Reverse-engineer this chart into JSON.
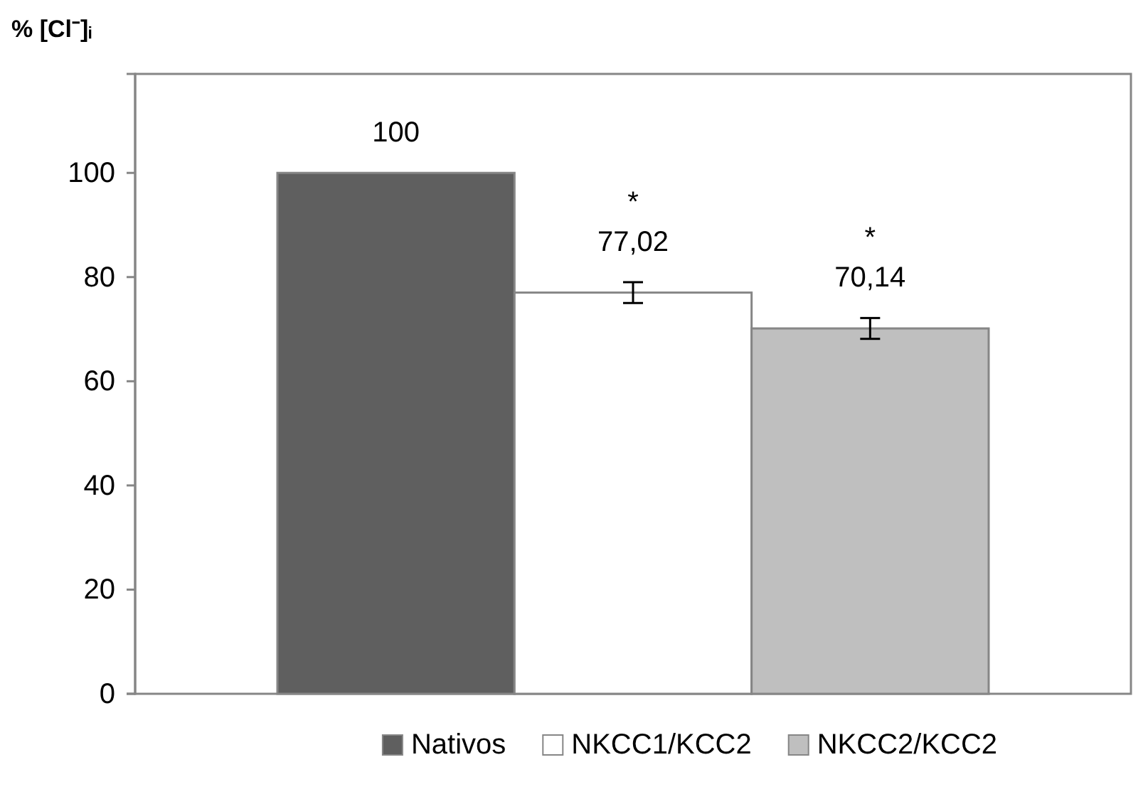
{
  "chart_data": {
    "type": "bar",
    "ylabel": "% [Cl⁻]ᵢ",
    "categories": [
      null
    ],
    "series": [
      {
        "name": "Nativos",
        "color": "#5f5f5f",
        "values": [
          100
        ],
        "errors": [
          null
        ],
        "value_labels": [
          "100"
        ]
      },
      {
        "name": "NKCC1/KCC2",
        "color": "#ffffff",
        "values": [
          77.02
        ],
        "errors": [
          2
        ],
        "value_labels": [
          "77,02"
        ]
      },
      {
        "name": "NKCC2/KCC2",
        "color": "#bfbfbf",
        "values": [
          70.14
        ],
        "errors": [
          2
        ],
        "value_labels": [
          "70,14"
        ]
      }
    ],
    "annotations": [
      "*",
      "*"
    ],
    "ylim": [
      0,
      119
    ],
    "yticks": [
      0,
      20,
      40,
      60,
      80,
      100
    ],
    "grid": false,
    "legend": "bottom"
  }
}
